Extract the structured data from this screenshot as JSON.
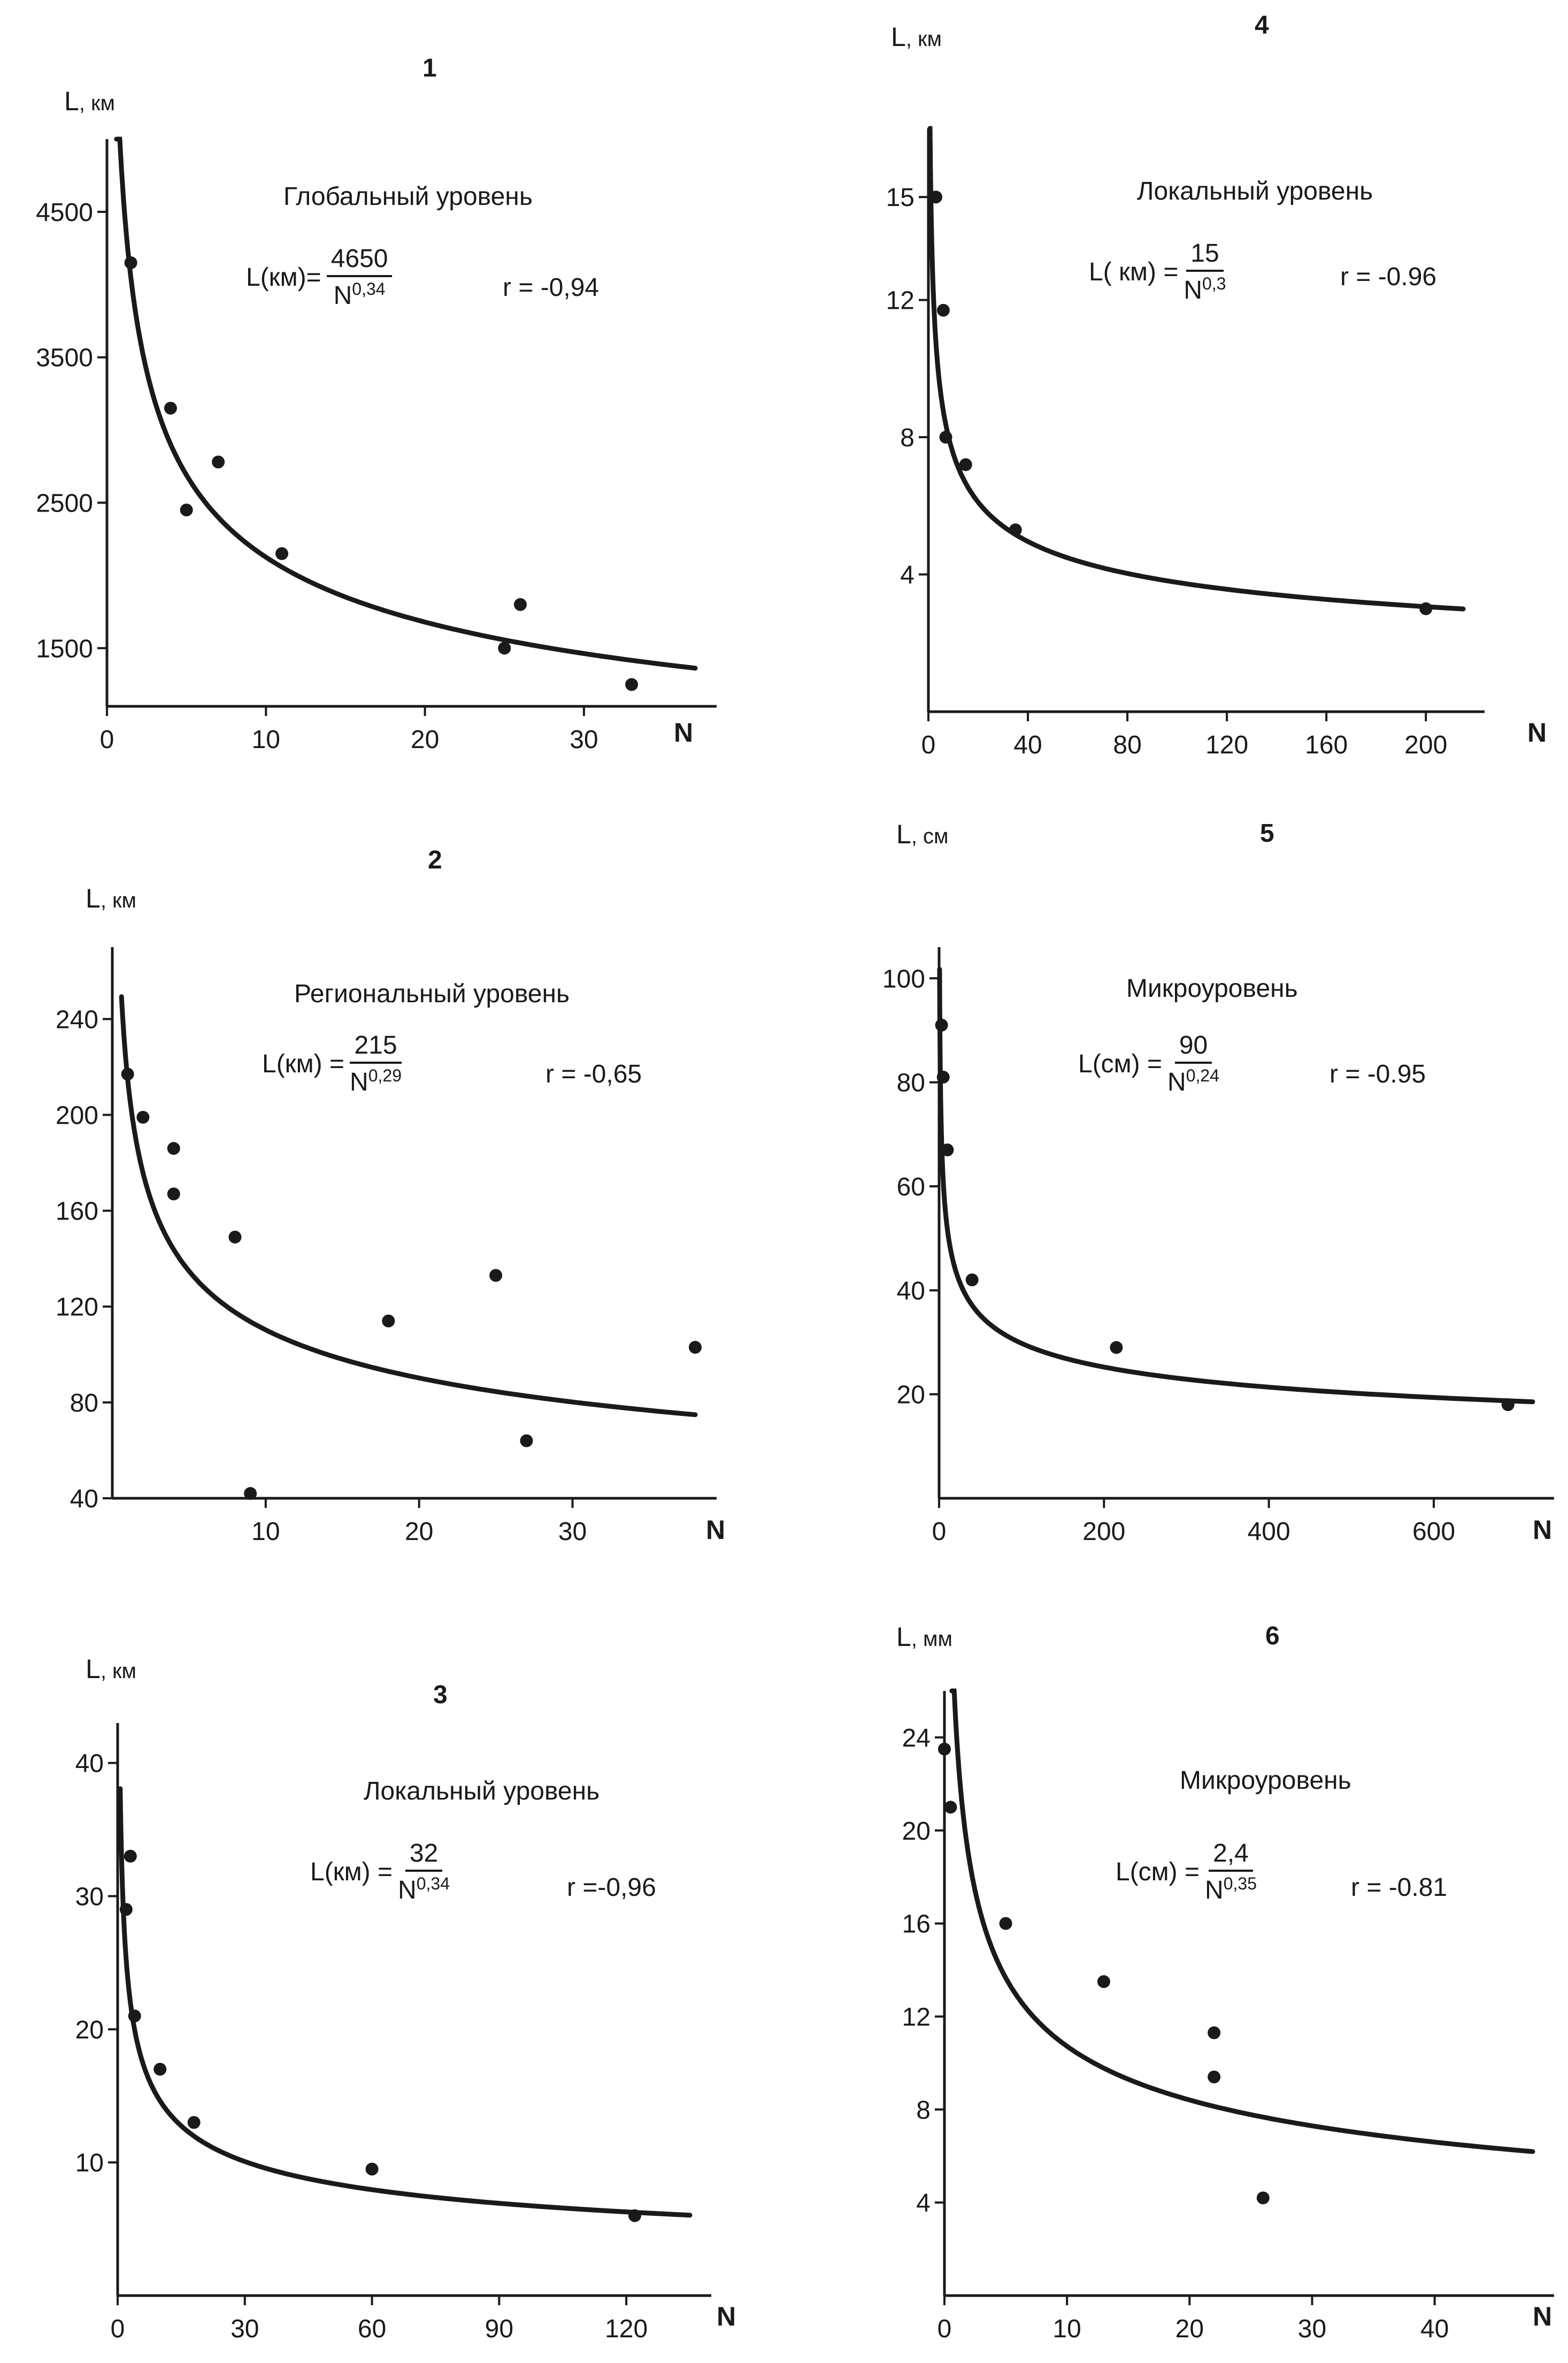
{
  "chart_data": [
    {
      "type": "scatter",
      "panel_number": "1",
      "level": "Глобальный уровень",
      "ylabel": "L",
      "yunit": ", км",
      "xlabel": "N",
      "xlim": [
        0,
        37
      ],
      "ylim": [
        1100,
        5000
      ],
      "xticks": [
        0,
        10,
        20,
        30
      ],
      "yticks": [
        1500,
        2500,
        3500,
        4500
      ],
      "formula": {
        "lhs": "L(км)=",
        "num": "4650",
        "base": "N",
        "exp": "0,34"
      },
      "fit": {
        "a": 4650,
        "b": 0.34
      },
      "r_text": "r = -0,94",
      "points": [
        [
          1.5,
          4150
        ],
        [
          4,
          3150
        ],
        [
          5,
          2450
        ],
        [
          7,
          2780
        ],
        [
          11,
          2150
        ],
        [
          25,
          1500
        ],
        [
          26,
          1800
        ],
        [
          33,
          1250
        ]
      ]
    },
    {
      "type": "scatter",
      "panel_number": "2",
      "level": "Региональный уровень",
      "ylabel": "L",
      "yunit": ", км",
      "xlabel": "N",
      "xlim": [
        0,
        38
      ],
      "ylim": [
        40,
        270
      ],
      "xticks": [
        10,
        20,
        30
      ],
      "yticks": [
        40,
        80,
        120,
        160,
        200,
        240
      ],
      "formula": {
        "lhs": "L(км) =",
        "num": "215",
        "base": "N",
        "exp": "0,29"
      },
      "fit": {
        "a": 215,
        "b": 0.29
      },
      "r_text": "r = -0,65",
      "points": [
        [
          1,
          217
        ],
        [
          2,
          199
        ],
        [
          4,
          186
        ],
        [
          4,
          167
        ],
        [
          8,
          149
        ],
        [
          9,
          42
        ],
        [
          18,
          114
        ],
        [
          25,
          133
        ],
        [
          27,
          64
        ],
        [
          38,
          103
        ]
      ]
    },
    {
      "type": "scatter",
      "panel_number": "3",
      "level": "Локальный уровень",
      "ylabel": "L",
      "yunit": ", км",
      "xlabel": "N",
      "xlim": [
        0,
        135
      ],
      "ylim": [
        0,
        43
      ],
      "xticks": [
        0,
        30,
        60,
        90,
        120
      ],
      "yticks": [
        10,
        20,
        30,
        40
      ],
      "formula": {
        "lhs": "L(км) =",
        "num": "32",
        "base": "N",
        "exp": "0,34"
      },
      "fit": {
        "a": 32,
        "b": 0.34
      },
      "r_text": "r =-0,96",
      "points": [
        [
          2,
          29
        ],
        [
          3,
          33
        ],
        [
          4,
          21
        ],
        [
          10,
          17
        ],
        [
          18,
          13
        ],
        [
          60,
          9.5
        ],
        [
          122,
          6
        ]
      ]
    },
    {
      "type": "scatter",
      "panel_number": "4",
      "level": "Локальный уровень",
      "ylabel": "L",
      "yunit": ", км",
      "xlabel": "N",
      "xlim": [
        0,
        215
      ],
      "ylim": [
        0,
        17
      ],
      "xticks": [
        0,
        40,
        80,
        120,
        160,
        200
      ],
      "yticks": [
        4,
        8,
        12,
        15
      ],
      "formula": {
        "lhs": "L( км) =",
        "num": "15",
        "base": "N",
        "exp": "0,3"
      },
      "fit": {
        "a": 15,
        "b": 0.3
      },
      "r_text": "r = -0.96",
      "points": [
        [
          3,
          15
        ],
        [
          6,
          11.7
        ],
        [
          7,
          8
        ],
        [
          15,
          7.2
        ],
        [
          35,
          5.3
        ],
        [
          200,
          3
        ]
      ]
    },
    {
      "type": "scatter",
      "panel_number": "5",
      "level": "Микроуровень",
      "ylabel": "L",
      "yunit": ", см",
      "xlabel": "N",
      "xlim": [
        0,
        720
      ],
      "ylim": [
        0,
        106
      ],
      "xticks": [
        0,
        200,
        400,
        600
      ],
      "yticks": [
        20,
        40,
        60,
        80,
        100
      ],
      "formula": {
        "lhs": "L(см) =",
        "num": "90",
        "base": "N",
        "exp": "0,24"
      },
      "fit": {
        "a": 90,
        "b": 0.24
      },
      "r_text": "r = -0.95",
      "points": [
        [
          3,
          91
        ],
        [
          5,
          81
        ],
        [
          10,
          67
        ],
        [
          40,
          42
        ],
        [
          215,
          29
        ],
        [
          690,
          18
        ]
      ]
    },
    {
      "type": "scatter",
      "panel_number": "6",
      "level": "Микроуровень",
      "ylabel": "L",
      "yunit": ", мм",
      "xlabel": "N",
      "xlim": [
        0,
        48
      ],
      "ylim": [
        0,
        26
      ],
      "xticks": [
        0,
        10,
        20,
        30,
        40
      ],
      "yticks": [
        4,
        8,
        12,
        16,
        20,
        24
      ],
      "formula": {
        "lhs": "L(см) =",
        "num": "2,4",
        "base": "N",
        "exp": "0,35"
      },
      "fit": {
        "a": 24,
        "b": 0.35
      },
      "r_text": "r = -0.81",
      "points": [
        [
          0,
          23.5
        ],
        [
          0.5,
          21
        ],
        [
          5,
          16
        ],
        [
          13,
          13.5
        ],
        [
          22,
          11.3
        ],
        [
          22,
          9.4
        ],
        [
          26,
          4.2
        ]
      ]
    }
  ]
}
